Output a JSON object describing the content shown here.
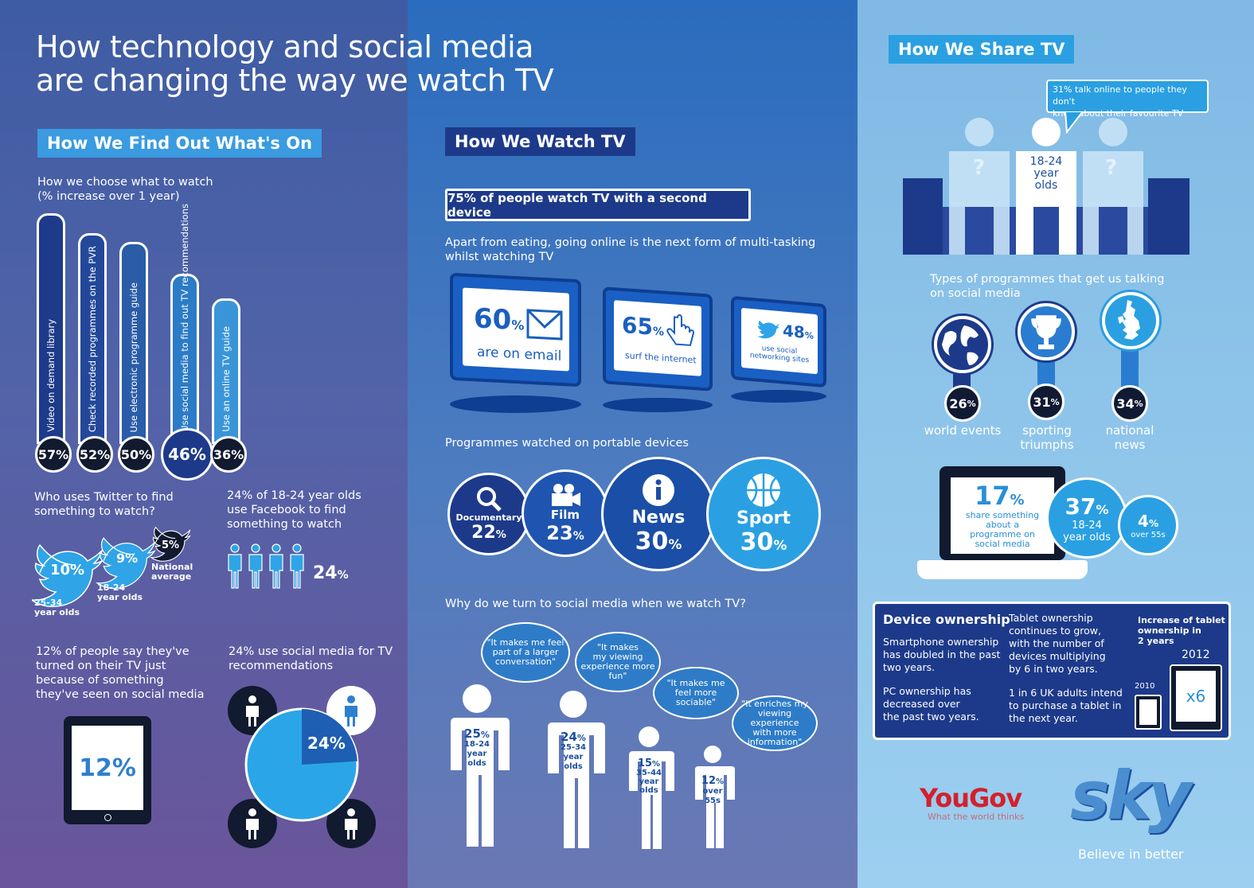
{
  "title_line1": "How technology and social media",
  "title_line2": "are changing the way we watch TV",
  "find": {
    "heading": "How We Find Out What's On",
    "chart_caption_1": "How we choose what to watch",
    "chart_caption_2": "(% increase over 1 year)",
    "twitter_q_1": "Who uses Twitter to find",
    "twitter_q_2": "something to watch?",
    "tw_25_pct": "10%",
    "tw_25_label_1": "25-34",
    "tw_25_label_2": "year olds",
    "tw_18_pct": "9%",
    "tw_18_label_1": "18-24",
    "tw_18_label_2": "year olds",
    "tw_nat_pct": "5%",
    "tw_nat_label_1": "National",
    "tw_nat_label_2": "average",
    "fb_1": "24% of 18-24 year olds",
    "fb_2": "use Facebook to find",
    "fb_3": "something to watch",
    "fb_pct": "24",
    "pct_sign": "%",
    "tv_1": "12% of people say they've",
    "tv_2": "turned on their TV just",
    "tv_3": "because of something",
    "tv_4": "they've seen on social media",
    "tablet_pct": "12%",
    "rec_1": "24% use social media for  TV",
    "rec_2": "recommendations",
    "pie_pct": "24%"
  },
  "chart_data": {
    "type": "bar",
    "title": "How we choose what to watch",
    "subtitle": "(% increase over 1 year)",
    "categories": [
      "Video on demand library",
      "Check recorded programmes on the PVR",
      "Use electronic programme guide",
      "Use social media to find out TV recommendations",
      "Use an online TV guide"
    ],
    "values": [
      57,
      52,
      50,
      46,
      36
    ],
    "labels": [
      "57%",
      "52%",
      "50%",
      "46%",
      "36%"
    ],
    "colors": [
      "#1e3a8a",
      "#23489a",
      "#2a5ca8",
      "#2b7bc7",
      "#3a95d8"
    ]
  },
  "watch": {
    "heading": "How We Watch TV",
    "banner": "75% of people watch TV with a second device",
    "multitask_1": "Apart from eating, going online is the next form of multi-tasking",
    "multitask_2": "whilst watching TV",
    "email_pct": "60",
    "email_label": "are on email",
    "surf_pct": "65",
    "surf_label": "surf the internet",
    "social_pct": "48",
    "social_label_1": "use social",
    "social_label_2": "networking sites",
    "portable_caption": "Programmes watched on portable devices",
    "doc_label": "Documentary",
    "doc_pct": "22",
    "film_label": "Film",
    "film_pct": "23",
    "news_label": "News",
    "news_pct": "30",
    "sport_label": "Sport",
    "sport_pct": "30",
    "why_caption": "Why do we turn to social media when we watch TV?",
    "q1_1": "\"It makes me feel",
    "q1_2": "part of a larger",
    "q1_3": "conversation\"",
    "q2_1": "\"It makes",
    "q2_2": "my viewing",
    "q2_3": "experience more",
    "q2_4": "fun\"",
    "q3_1": "\"It makes me",
    "q3_2": "feel more",
    "q3_3": "sociable\"",
    "q4_1": "\"It enriches my",
    "q4_2": "viewing experience",
    "q4_3": "with more",
    "q4_4": "information\"",
    "p1_pct": "25",
    "p1_a": "18-24",
    "p1_b": "year",
    "p1_c": "olds",
    "p2_pct": "24",
    "p2_a": "25-34",
    "p2_b": "year",
    "p2_c": "olds",
    "p3_pct": "15",
    "p3_a": "35-44",
    "p3_b": "year",
    "p3_c": "olds",
    "p4_pct": "12",
    "p4_a": "over",
    "p4_b": "55s"
  },
  "share": {
    "heading": "How We Share TV",
    "speech_1": "31% talk online to people they don't",
    "speech_2": "know about their favourite TV",
    "q_mark": "?",
    "center_1": "18-24",
    "center_2": "year",
    "center_3": "olds",
    "types_1": "Types of programmes  that get us talking",
    "types_2": "on social media",
    "world_pct": "26",
    "world_label": "world events",
    "sport_pct": "31",
    "sport_label_1": "sporting",
    "sport_label_2": "triumphs",
    "nat_pct": "34",
    "nat_label_1": "national",
    "nat_label_2": "news",
    "laptop_pct": "17",
    "laptop_1": "share something",
    "laptop_2": "about a",
    "laptop_3": "programme on",
    "laptop_4": "social media",
    "b37_pct": "37",
    "b37_1": "18-24",
    "b37_2": "year olds",
    "b4_pct": "4",
    "b4_1": "over 55s",
    "device_title": "Device ownership",
    "dev_a1": "Smartphone ownership",
    "dev_a2": "has doubled in the past",
    "dev_a3": "two years.",
    "dev_b1": "PC ownership has",
    "dev_b2": "decreased over",
    "dev_b3": "the past two years.",
    "dev_c1": "Tablet ownership",
    "dev_c2": "continues to grow,",
    "dev_c3": "with the number of",
    "dev_c4": "devices multiplying",
    "dev_c5": "by 6 in two years.",
    "dev_d1": "1 in 6 UK adults intend",
    "dev_d2": "to purchase a tablet in",
    "dev_d3": "the next year.",
    "inc_1": "Increase of tablet",
    "inc_2": "ownership in",
    "inc_3": "2 years",
    "y2012": "2012",
    "y2010": "2010",
    "x6": "x6",
    "yougov": "YouGov",
    "yougov_tag": "What the world thinks",
    "sky": "sky",
    "sky_tag": "Believe in better"
  }
}
